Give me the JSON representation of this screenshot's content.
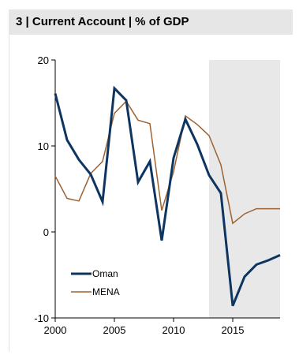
{
  "title": "3 | Current Account | % of GDP",
  "chart_data": {
    "type": "line",
    "title": "3 | Current Account | % of GDP",
    "xlabel": "",
    "ylabel": "",
    "xlim": [
      2000,
      2019
    ],
    "ylim": [
      -10,
      20
    ],
    "xticks": [
      2000,
      2005,
      2010,
      2015
    ],
    "yticks": [
      20,
      10,
      0,
      -10
    ],
    "shaded_region": {
      "x_start": 2013,
      "x_end": 2019,
      "color": "#e8e8e8"
    },
    "grid": false,
    "legend_position": "lower-left",
    "x": [
      2000,
      2001,
      2002,
      2003,
      2004,
      2005,
      2006,
      2007,
      2008,
      2009,
      2010,
      2011,
      2012,
      2013,
      2014,
      2015,
      2016,
      2017,
      2018,
      2019
    ],
    "series": [
      {
        "name": "Oman",
        "color": "#0d3560",
        "width": 3,
        "values": [
          16.1,
          10.7,
          8.4,
          6.7,
          3.5,
          16.7,
          15.3,
          5.8,
          8.2,
          -1.0,
          8.6,
          13.1,
          10.2,
          6.6,
          4.5,
          -8.6,
          -5.2,
          -3.8,
          -3.3,
          -2.7
        ]
      },
      {
        "name": "MENA",
        "color": "#9c6233",
        "width": 1.5,
        "values": [
          6.5,
          3.9,
          3.6,
          6.8,
          8.2,
          13.8,
          15.2,
          13.0,
          12.6,
          2.5,
          7.0,
          13.5,
          12.5,
          11.2,
          7.8,
          1.0,
          2.1,
          2.7,
          2.7,
          2.7
        ]
      }
    ]
  }
}
